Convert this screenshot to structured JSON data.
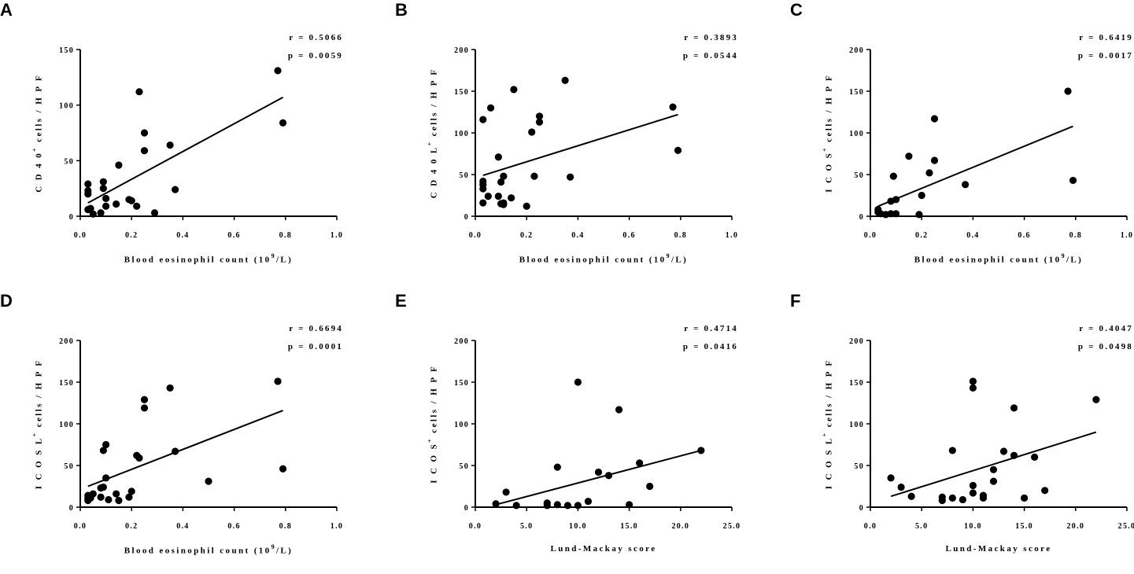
{
  "chart_data": [
    {
      "id": "A",
      "letter": "A",
      "type": "scatter",
      "ylabel_pre": "C D 4 0",
      "ylabel_sup": "+",
      "ylabel_post": " cells / H P F",
      "xlabel_pre": "Blood eosinophil count (10",
      "xlabel_sup": "9",
      "xlabel_post": "/L)",
      "r_text": "r = 0.5066",
      "p_text": "p = 0.0059",
      "xlim": [
        0,
        1.0
      ],
      "ylim": [
        0,
        150
      ],
      "xticks": [
        0.0,
        0.2,
        0.4,
        0.6,
        0.8,
        1.0
      ],
      "xtick_labels": [
        "0.0",
        "0.2",
        "0.4",
        "0.6",
        "0.8",
        "1.0"
      ],
      "yticks": [
        0,
        50,
        100,
        150
      ],
      "ytick_labels": [
        "0",
        "50",
        "100",
        "150"
      ],
      "points": [
        [
          0.03,
          29
        ],
        [
          0.03,
          23
        ],
        [
          0.03,
          20
        ],
        [
          0.03,
          6
        ],
        [
          0.04,
          7
        ],
        [
          0.05,
          2
        ],
        [
          0.08,
          3
        ],
        [
          0.09,
          31
        ],
        [
          0.09,
          25
        ],
        [
          0.1,
          16
        ],
        [
          0.1,
          9
        ],
        [
          0.14,
          11
        ],
        [
          0.15,
          46
        ],
        [
          0.19,
          15
        ],
        [
          0.2,
          14
        ],
        [
          0.22,
          9
        ],
        [
          0.23,
          112
        ],
        [
          0.25,
          75
        ],
        [
          0.25,
          59
        ],
        [
          0.29,
          3
        ],
        [
          0.35,
          64
        ],
        [
          0.37,
          24
        ],
        [
          0.77,
          131
        ],
        [
          0.79,
          84
        ]
      ],
      "fit": [
        [
          0.03,
          12
        ],
        [
          0.79,
          107
        ]
      ]
    },
    {
      "id": "B",
      "letter": "B",
      "type": "scatter",
      "ylabel_pre": "C D 4 0 L",
      "ylabel_sup": "+",
      "ylabel_post": " cells / H P F",
      "xlabel_pre": "Blood eosinophil count (10",
      "xlabel_sup": "9",
      "xlabel_post": "/L)",
      "r_text": "r = 0.3893",
      "p_text": "p = 0.0544",
      "xlim": [
        0,
        1.0
      ],
      "ylim": [
        0,
        200
      ],
      "xticks": [
        0.0,
        0.2,
        0.4,
        0.6,
        0.8,
        1.0
      ],
      "xtick_labels": [
        "0.0",
        "0.2",
        "0.4",
        "0.6",
        "0.8",
        "1.0"
      ],
      "yticks": [
        0,
        50,
        100,
        150,
        200
      ],
      "ytick_labels": [
        "0",
        "50",
        "100",
        "150",
        "200"
      ],
      "points": [
        [
          0.03,
          116
        ],
        [
          0.03,
          42
        ],
        [
          0.03,
          38
        ],
        [
          0.03,
          33
        ],
        [
          0.03,
          16
        ],
        [
          0.05,
          24
        ],
        [
          0.06,
          130
        ],
        [
          0.09,
          71
        ],
        [
          0.09,
          24
        ],
        [
          0.1,
          15
        ],
        [
          0.1,
          41
        ],
        [
          0.11,
          48
        ],
        [
          0.11,
          14
        ],
        [
          0.11,
          16
        ],
        [
          0.14,
          22
        ],
        [
          0.15,
          152
        ],
        [
          0.2,
          12
        ],
        [
          0.22,
          101
        ],
        [
          0.23,
          48
        ],
        [
          0.25,
          120
        ],
        [
          0.25,
          113
        ],
        [
          0.35,
          163
        ],
        [
          0.37,
          47
        ],
        [
          0.77,
          131
        ],
        [
          0.79,
          79
        ]
      ],
      "fit": [
        [
          0.03,
          49
        ],
        [
          0.79,
          122
        ]
      ]
    },
    {
      "id": "C",
      "letter": "C",
      "type": "scatter",
      "ylabel_pre": "I C O S",
      "ylabel_sup": "+",
      "ylabel_post": " cells / H P F",
      "xlabel_pre": "Blood eosinophil count (10",
      "xlabel_sup": "9",
      "xlabel_post": "/L)",
      "r_text": "r = 0.6419",
      "p_text": "p = 0.0017",
      "xlim": [
        0,
        1.0
      ],
      "ylim": [
        0,
        200
      ],
      "xticks": [
        0.0,
        0.2,
        0.4,
        0.6,
        0.8,
        1.0
      ],
      "xtick_labels": [
        "0.0",
        "0.2",
        "0.4",
        "0.6",
        "0.8",
        "1.0"
      ],
      "yticks": [
        0,
        50,
        100,
        150,
        200
      ],
      "ytick_labels": [
        "0",
        "50",
        "100",
        "150",
        "200"
      ],
      "points": [
        [
          0.03,
          8
        ],
        [
          0.03,
          5
        ],
        [
          0.04,
          3
        ],
        [
          0.06,
          2
        ],
        [
          0.08,
          3
        ],
        [
          0.08,
          18
        ],
        [
          0.09,
          48
        ],
        [
          0.1,
          20
        ],
        [
          0.1,
          3
        ],
        [
          0.15,
          72
        ],
        [
          0.19,
          2
        ],
        [
          0.2,
          25
        ],
        [
          0.23,
          52
        ],
        [
          0.25,
          117
        ],
        [
          0.25,
          67
        ],
        [
          0.37,
          38
        ],
        [
          0.77,
          150
        ],
        [
          0.79,
          43
        ]
      ],
      "fit": [
        [
          0.03,
          12
        ],
        [
          0.79,
          108
        ]
      ]
    },
    {
      "id": "D",
      "letter": "D",
      "type": "scatter",
      "ylabel_pre": "I C O S L",
      "ylabel_sup": "+",
      "ylabel_post": " cells / H P F",
      "xlabel_pre": "Blood eosinophil count (10",
      "xlabel_sup": "9",
      "xlabel_post": "/L)",
      "r_text": "r = 0.6694",
      "p_text": "p = 0.0001",
      "xlim": [
        0,
        1.0
      ],
      "ylim": [
        0,
        200
      ],
      "xticks": [
        0.0,
        0.2,
        0.4,
        0.6,
        0.8,
        1.0
      ],
      "xtick_labels": [
        "0.0",
        "0.2",
        "0.4",
        "0.6",
        "0.8",
        "1.0"
      ],
      "yticks": [
        0,
        50,
        100,
        150,
        200
      ],
      "ytick_labels": [
        "0",
        "50",
        "100",
        "150",
        "200"
      ],
      "points": [
        [
          0.03,
          14
        ],
        [
          0.03,
          11
        ],
        [
          0.03,
          8
        ],
        [
          0.04,
          11
        ],
        [
          0.05,
          16
        ],
        [
          0.08,
          12
        ],
        [
          0.08,
          23
        ],
        [
          0.09,
          68
        ],
        [
          0.09,
          24
        ],
        [
          0.1,
          75
        ],
        [
          0.1,
          35
        ],
        [
          0.11,
          9
        ],
        [
          0.14,
          16
        ],
        [
          0.15,
          8
        ],
        [
          0.19,
          12
        ],
        [
          0.2,
          19
        ],
        [
          0.22,
          62
        ],
        [
          0.23,
          59
        ],
        [
          0.25,
          129
        ],
        [
          0.25,
          119
        ],
        [
          0.35,
          143
        ],
        [
          0.37,
          67
        ],
        [
          0.5,
          31
        ],
        [
          0.77,
          151
        ],
        [
          0.79,
          46
        ]
      ],
      "fit": [
        [
          0.03,
          25
        ],
        [
          0.79,
          116
        ]
      ]
    },
    {
      "id": "E",
      "letter": "E",
      "type": "scatter",
      "ylabel_pre": "I C O S",
      "ylabel_sup": "+",
      "ylabel_post": " cells / H P F",
      "xlabel_pre": "Lund-Mackay score",
      "xlabel_sup": "",
      "xlabel_post": "",
      "r_text": "r = 0.4714",
      "p_text": "p = 0.0416",
      "xlim": [
        0,
        25
      ],
      "ylim": [
        0,
        200
      ],
      "xticks": [
        0,
        5,
        10,
        15,
        20,
        25
      ],
      "xtick_labels": [
        "0.0",
        "5.0",
        "10.0",
        "15.0",
        "20.0",
        "25.0"
      ],
      "yticks": [
        0,
        50,
        100,
        150,
        200
      ],
      "ytick_labels": [
        "0",
        "50",
        "100",
        "150",
        "200"
      ],
      "points": [
        [
          2,
          4
        ],
        [
          3,
          18
        ],
        [
          4,
          2
        ],
        [
          7,
          5
        ],
        [
          7,
          2
        ],
        [
          8,
          3
        ],
        [
          8,
          48
        ],
        [
          9,
          2
        ],
        [
          10,
          2
        ],
        [
          10,
          150
        ],
        [
          11,
          7
        ],
        [
          12,
          42
        ],
        [
          13,
          38
        ],
        [
          14,
          117
        ],
        [
          15,
          3
        ],
        [
          16,
          53
        ],
        [
          17,
          25
        ],
        [
          22,
          68
        ]
      ],
      "fit": [
        [
          2,
          3
        ],
        [
          22,
          68
        ]
      ]
    },
    {
      "id": "F",
      "letter": "F",
      "type": "scatter",
      "ylabel_pre": "I C O S L",
      "ylabel_sup": "+",
      "ylabel_post": " cells / H P F",
      "xlabel_pre": "Lund-Mackay score",
      "xlabel_sup": "",
      "xlabel_post": "",
      "r_text": "r = 0.4047",
      "p_text": "p = 0.0498",
      "xlim": [
        0,
        25
      ],
      "ylim": [
        0,
        200
      ],
      "xticks": [
        0,
        5,
        10,
        15,
        20,
        25
      ],
      "xtick_labels": [
        "0.0",
        "5.0",
        "10.0",
        "15.0",
        "20.0",
        "25.0"
      ],
      "yticks": [
        0,
        50,
        100,
        150,
        200
      ],
      "ytick_labels": [
        "0",
        "50",
        "100",
        "150",
        "200"
      ],
      "points": [
        [
          2,
          35
        ],
        [
          3,
          24
        ],
        [
          4,
          13
        ],
        [
          7,
          12
        ],
        [
          7,
          8
        ],
        [
          8,
          68
        ],
        [
          8,
          11
        ],
        [
          9,
          9
        ],
        [
          10,
          151
        ],
        [
          10,
          143
        ],
        [
          10,
          26
        ],
        [
          10,
          17
        ],
        [
          11,
          14
        ],
        [
          11,
          11
        ],
        [
          12,
          45
        ],
        [
          12,
          31
        ],
        [
          13,
          67
        ],
        [
          14,
          119
        ],
        [
          14,
          62
        ],
        [
          15,
          11
        ],
        [
          16,
          60
        ],
        [
          17,
          20
        ],
        [
          22,
          129
        ]
      ],
      "fit": [
        [
          2,
          13
        ],
        [
          22,
          90
        ]
      ]
    }
  ]
}
